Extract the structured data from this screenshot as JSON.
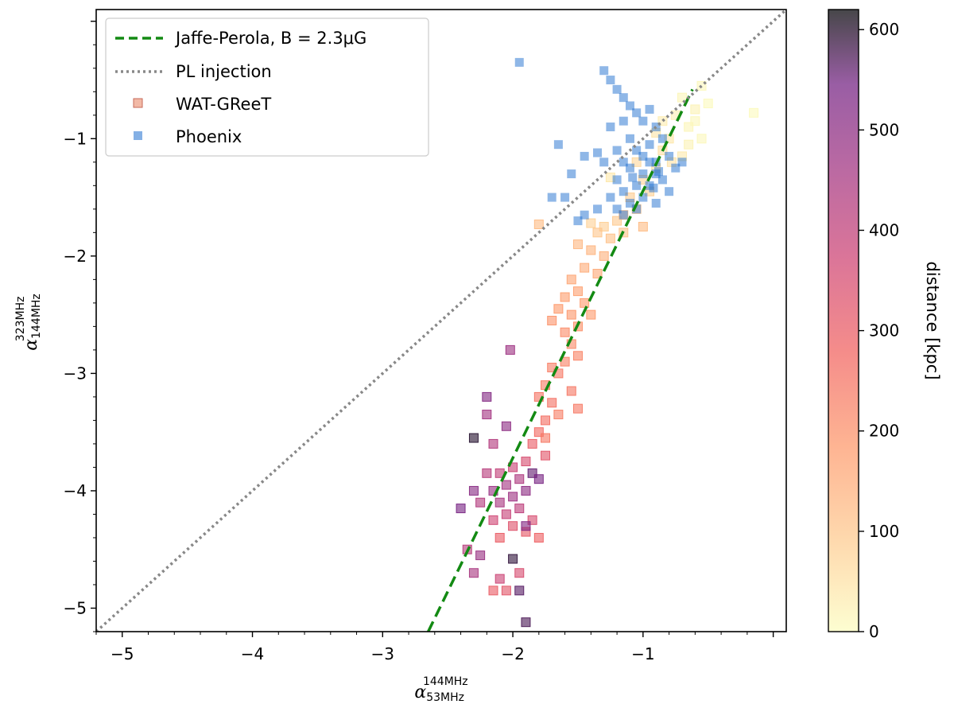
{
  "chart_data": {
    "type": "scatter",
    "xlabel": {
      "symbol": "α",
      "sup": "144MHz",
      "sub": "53MHz"
    },
    "ylabel": {
      "symbol": "α",
      "sup": "323MHz",
      "sub": "144MHz"
    },
    "xlim": [
      -5.2,
      0.1
    ],
    "ylim": [
      -5.2,
      0.1
    ],
    "xticks": [
      -5,
      -4,
      -3,
      -2,
      -1
    ],
    "yticks": [
      -5,
      -4,
      -3,
      -2,
      -1
    ],
    "xtick_labels": [
      "−5",
      "−4",
      "−3",
      "−2",
      "−1"
    ],
    "ytick_labels": [
      "−5",
      "−4",
      "−3",
      "−2",
      "−1"
    ],
    "legend": {
      "placement": "top-left",
      "entries": [
        {
          "key": "jp",
          "label": "Jaffe-Perola, B = 2.3μG"
        },
        {
          "key": "pl",
          "label": "PL injection"
        },
        {
          "key": "wat",
          "label": "WAT-GReeT"
        },
        {
          "key": "phx",
          "label": "Phoenix"
        }
      ]
    },
    "colorbar": {
      "label": "distance [kpc]",
      "range": [
        0,
        620
      ],
      "ticks": [
        0,
        100,
        200,
        300,
        400,
        500,
        600
      ],
      "tick_labels": [
        "0",
        "100",
        "200",
        "300",
        "400",
        "500",
        "600"
      ],
      "colormap": "magma_r"
    },
    "lines": [
      {
        "key": "jp",
        "style": "dashed",
        "color": "#138a13",
        "x": [
          -2.65,
          -0.62
        ],
        "y": [
          -5.2,
          -0.58
        ]
      },
      {
        "key": "pl",
        "style": "dotted",
        "color": "#888888",
        "x": [
          -5.2,
          0.1
        ],
        "y": [
          -5.2,
          0.1
        ]
      }
    ],
    "series": [
      {
        "name": "WAT-GReeT",
        "points": [
          [
            -0.55,
            -0.55,
            10
          ],
          [
            -0.5,
            -0.7,
            5
          ],
          [
            -0.7,
            -0.65,
            15
          ],
          [
            -0.6,
            -0.75,
            20
          ],
          [
            -0.75,
            -0.8,
            25
          ],
          [
            -0.85,
            -0.85,
            30
          ],
          [
            -0.65,
            -0.9,
            15
          ],
          [
            -0.8,
            -1.0,
            40
          ],
          [
            -0.55,
            -1.0,
            10
          ],
          [
            -0.65,
            -1.05,
            20
          ],
          [
            -0.9,
            -0.95,
            45
          ],
          [
            -0.7,
            -1.15,
            35
          ],
          [
            -0.15,
            -0.78,
            5
          ],
          [
            -0.78,
            -1.2,
            50
          ],
          [
            -0.6,
            -0.85,
            10
          ],
          [
            -0.85,
            -1.1,
            55
          ],
          [
            -0.9,
            -1.25,
            60
          ],
          [
            -1.05,
            -1.2,
            70
          ],
          [
            -1.25,
            -1.33,
            40
          ],
          [
            -1.0,
            -1.35,
            75
          ],
          [
            -0.95,
            -1.45,
            80
          ],
          [
            -1.1,
            -1.5,
            90
          ],
          [
            -1.05,
            -1.6,
            100
          ],
          [
            -1.15,
            -1.65,
            110
          ],
          [
            -1.2,
            -1.7,
            95
          ],
          [
            -1.0,
            -1.75,
            120
          ],
          [
            -1.3,
            -1.75,
            85
          ],
          [
            -1.4,
            -1.72,
            80
          ],
          [
            -1.15,
            -1.8,
            105
          ],
          [
            -1.25,
            -1.85,
            110
          ],
          [
            -1.35,
            -1.8,
            100
          ],
          [
            -1.8,
            -1.73,
            120
          ],
          [
            -1.5,
            -1.9,
            130
          ],
          [
            -1.4,
            -1.95,
            135
          ],
          [
            -1.3,
            -2.0,
            140
          ],
          [
            -1.45,
            -2.1,
            150
          ],
          [
            -1.55,
            -2.2,
            160
          ],
          [
            -1.35,
            -2.15,
            155
          ],
          [
            -1.5,
            -2.3,
            170
          ],
          [
            -1.6,
            -2.35,
            175
          ],
          [
            -1.45,
            -2.4,
            180
          ],
          [
            -1.65,
            -2.45,
            185
          ],
          [
            -1.55,
            -2.5,
            190
          ],
          [
            -1.4,
            -2.5,
            180
          ],
          [
            -1.7,
            -2.55,
            195
          ],
          [
            -1.5,
            -2.6,
            200
          ],
          [
            -1.6,
            -2.65,
            205
          ],
          [
            -1.55,
            -2.75,
            210
          ],
          [
            -1.5,
            -2.85,
            220
          ],
          [
            -1.6,
            -2.9,
            225
          ],
          [
            -1.7,
            -2.95,
            230
          ],
          [
            -1.65,
            -3.0,
            240
          ],
          [
            -1.75,
            -3.1,
            235
          ],
          [
            -1.8,
            -3.2,
            250
          ],
          [
            -1.7,
            -3.25,
            255
          ],
          [
            -1.55,
            -3.15,
            245
          ],
          [
            -1.5,
            -3.3,
            240
          ],
          [
            -1.75,
            -3.4,
            260
          ],
          [
            -1.8,
            -3.5,
            270
          ],
          [
            -1.85,
            -3.6,
            300
          ],
          [
            -1.75,
            -3.7,
            320
          ],
          [
            -1.9,
            -3.75,
            350
          ],
          [
            -2.0,
            -3.8,
            380
          ],
          [
            -2.1,
            -3.85,
            400
          ],
          [
            -2.2,
            -3.85,
            420
          ],
          [
            -1.95,
            -3.9,
            440
          ],
          [
            -2.05,
            -3.95,
            460
          ],
          [
            -2.15,
            -4.0,
            480
          ],
          [
            -1.9,
            -4.0,
            500
          ],
          [
            -2.3,
            -4.0,
            510
          ],
          [
            -2.0,
            -4.05,
            470
          ],
          [
            -2.1,
            -4.1,
            450
          ],
          [
            -2.25,
            -4.1,
            430
          ],
          [
            -1.95,
            -4.15,
            410
          ],
          [
            -2.05,
            -4.2,
            390
          ],
          [
            -2.15,
            -4.25,
            370
          ],
          [
            -1.85,
            -4.25,
            350
          ],
          [
            -2.0,
            -4.3,
            330
          ],
          [
            -1.9,
            -4.35,
            310
          ],
          [
            -2.1,
            -4.4,
            300
          ],
          [
            -1.8,
            -4.4,
            290
          ],
          [
            -2.35,
            -4.5,
            420
          ],
          [
            -2.3,
            -4.7,
            450
          ],
          [
            -2.1,
            -4.75,
            380
          ],
          [
            -1.95,
            -4.7,
            350
          ],
          [
            -2.05,
            -4.85,
            320
          ],
          [
            -2.15,
            -4.85,
            300
          ],
          [
            -1.9,
            -5.12,
            580
          ],
          [
            -2.0,
            -4.58,
            600
          ],
          [
            -2.2,
            -3.2,
            520
          ],
          [
            -2.05,
            -3.45,
            500
          ],
          [
            -1.85,
            -3.85,
            560
          ],
          [
            -1.8,
            -3.9,
            540
          ],
          [
            -2.3,
            -3.55,
            610
          ],
          [
            -1.95,
            -4.85,
            570
          ],
          [
            -2.4,
            -4.15,
            540
          ],
          [
            -2.2,
            -3.35,
            460
          ],
          [
            -2.15,
            -3.6,
            430
          ],
          [
            -1.9,
            -4.3,
            520
          ],
          [
            -2.02,
            -2.8,
            470
          ],
          [
            -2.25,
            -4.55,
            480
          ],
          [
            -1.75,
            -3.55,
            240
          ],
          [
            -1.65,
            -3.35,
            230
          ]
        ]
      },
      {
        "name": "Phoenix",
        "points": [
          [
            -1.95,
            -0.35
          ],
          [
            -1.3,
            -0.42
          ],
          [
            -1.25,
            -0.5
          ],
          [
            -1.2,
            -0.58
          ],
          [
            -1.15,
            -0.65
          ],
          [
            -1.1,
            -0.72
          ],
          [
            -1.05,
            -0.78
          ],
          [
            -0.95,
            -0.75
          ],
          [
            -1.0,
            -0.85
          ],
          [
            -1.15,
            -0.85
          ],
          [
            -0.9,
            -0.9
          ],
          [
            -1.25,
            -0.9
          ],
          [
            -0.85,
            -1.0
          ],
          [
            -1.1,
            -1.0
          ],
          [
            -0.95,
            -1.05
          ],
          [
            -1.2,
            -1.1
          ],
          [
            -1.35,
            -1.12
          ],
          [
            -1.45,
            -1.15
          ],
          [
            -1.3,
            -1.2
          ],
          [
            -1.15,
            -1.2
          ],
          [
            -1.0,
            -1.15
          ],
          [
            -0.9,
            -1.2
          ],
          [
            -0.8,
            -1.15
          ],
          [
            -0.75,
            -1.25
          ],
          [
            -0.7,
            -1.2
          ],
          [
            -1.1,
            -1.25
          ],
          [
            -1.0,
            -1.3
          ],
          [
            -0.9,
            -1.3
          ],
          [
            -0.85,
            -1.35
          ],
          [
            -1.2,
            -1.35
          ],
          [
            -1.05,
            -1.4
          ],
          [
            -0.95,
            -1.4
          ],
          [
            -1.15,
            -1.45
          ],
          [
            -0.8,
            -1.45
          ],
          [
            -1.25,
            -1.5
          ],
          [
            -1.0,
            -1.5
          ],
          [
            -1.1,
            -1.55
          ],
          [
            -0.9,
            -1.55
          ],
          [
            -1.35,
            -1.6
          ],
          [
            -1.2,
            -1.6
          ],
          [
            -1.05,
            -1.6
          ],
          [
            -1.45,
            -1.65
          ],
          [
            -1.15,
            -1.65
          ],
          [
            -1.5,
            -1.7
          ],
          [
            -1.55,
            -1.3
          ],
          [
            -1.65,
            -1.05
          ],
          [
            -1.6,
            -1.5
          ],
          [
            -1.7,
            -1.5
          ],
          [
            -1.05,
            -1.1
          ],
          [
            -0.95,
            -1.2
          ],
          [
            -0.88,
            -1.28
          ],
          [
            -0.92,
            -1.42
          ],
          [
            -1.08,
            -1.33
          ]
        ]
      }
    ]
  }
}
